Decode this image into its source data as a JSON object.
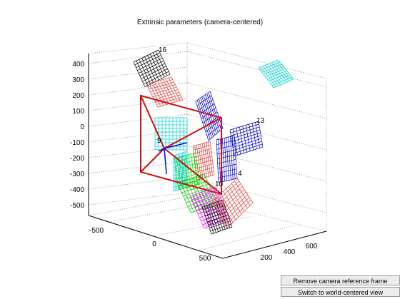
{
  "figure": {
    "title": "Extrinsic parameters (camera-centered)"
  },
  "axes": {
    "z_ticks": [
      "400",
      "300",
      "200",
      "100",
      "0",
      "-100",
      "-200",
      "-300",
      "-400",
      "-500"
    ],
    "x_ticks": [
      "-500",
      "0",
      "500"
    ],
    "y_ticks": [
      "200",
      "400",
      "600"
    ],
    "grid": true
  },
  "board_labels": [
    {
      "text": "16",
      "color": "#000000"
    },
    {
      "text": "13",
      "color": "#3333cc"
    },
    {
      "text": "4",
      "color": "#cc3333"
    },
    {
      "text": "9",
      "color": "#000000"
    },
    {
      "text": "10",
      "color": "#000000"
    }
  ],
  "buttons": {
    "remove_camera_frame": "Remove camera reference frame",
    "switch_view": "Switch to world-centered view"
  },
  "colors": {
    "frustum": "#d01010",
    "camera_axes": "#0000ff",
    "grid_lines": "#888888"
  }
}
